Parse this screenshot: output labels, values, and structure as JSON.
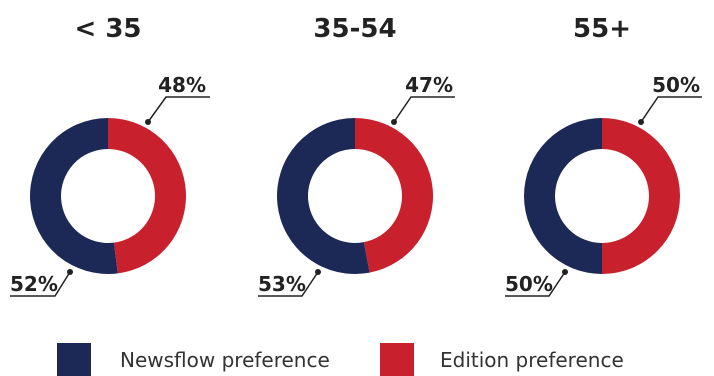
{
  "colors": {
    "newsflow": "#1c2957",
    "edition": "#c8202c",
    "text": "#222222"
  },
  "legend": {
    "newsflow_label": "Newsflow preference",
    "edition_label": "Edition preference"
  },
  "chart_data": [
    {
      "type": "pie",
      "title": "< 35",
      "series": [
        {
          "name": "Edition preference",
          "value": 48,
          "label": "48%"
        },
        {
          "name": "Newsflow preference",
          "value": 52,
          "label": "52%"
        }
      ]
    },
    {
      "type": "pie",
      "title": "35-54",
      "series": [
        {
          "name": "Edition preference",
          "value": 47,
          "label": "47%"
        },
        {
          "name": "Newsflow preference",
          "value": 53,
          "label": "53%"
        }
      ]
    },
    {
      "type": "pie",
      "title": "55+",
      "series": [
        {
          "name": "Edition preference",
          "value": 50,
          "label": "50%"
        },
        {
          "name": "Newsflow preference",
          "value": 50,
          "label": "50%"
        }
      ]
    }
  ]
}
